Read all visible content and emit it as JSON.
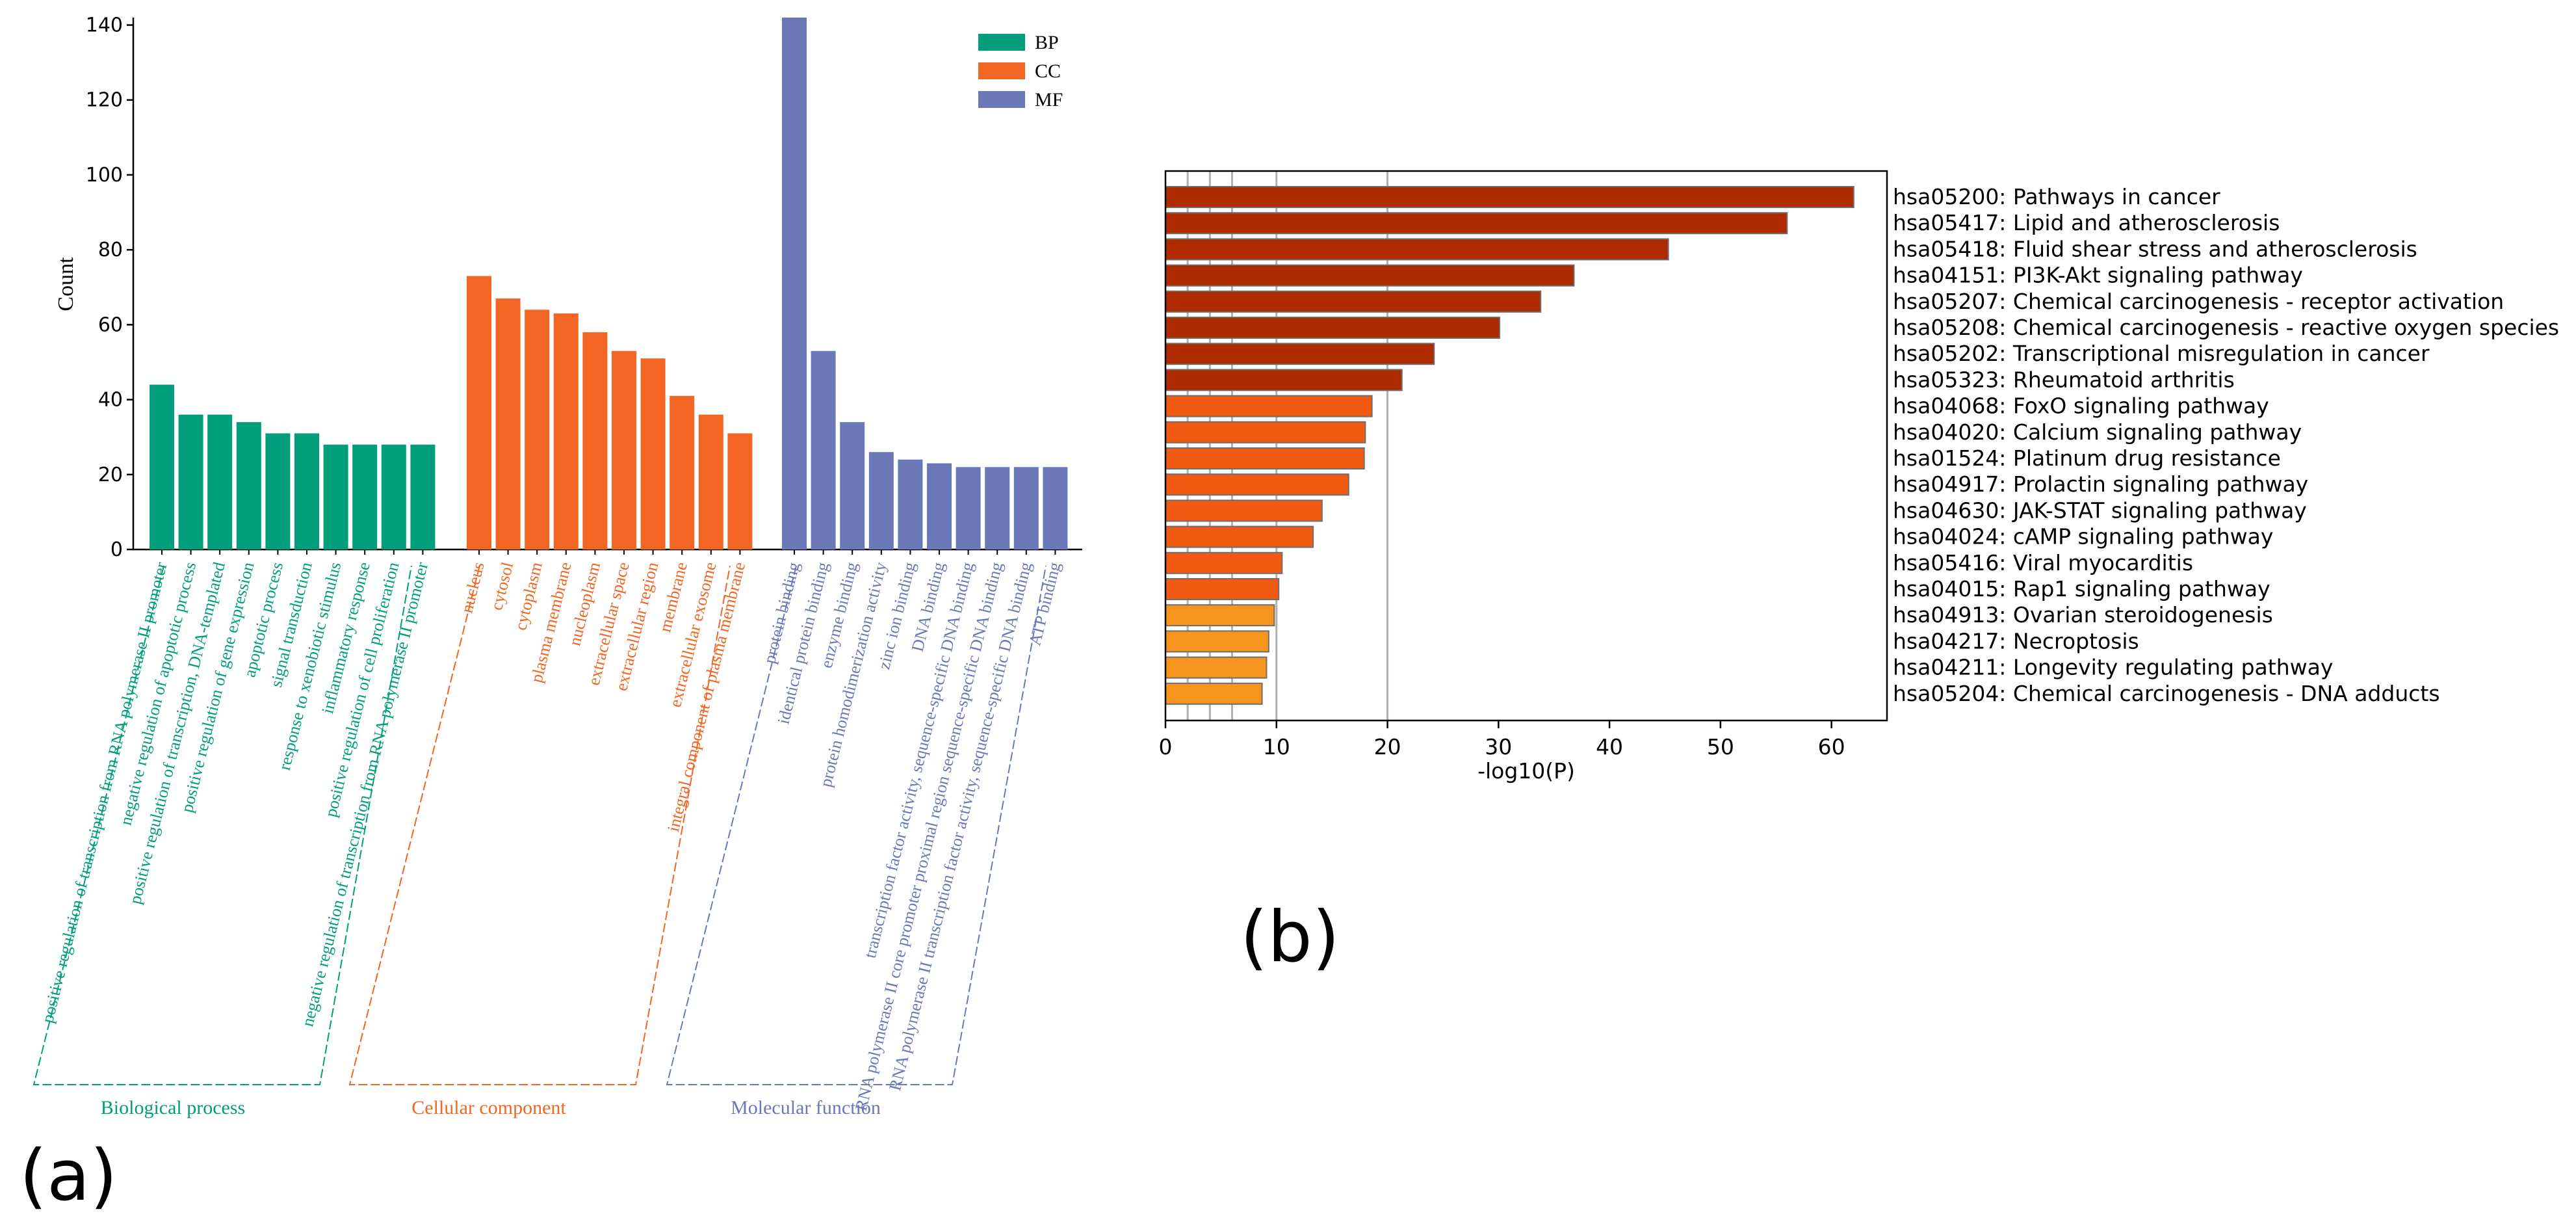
{
  "colors": {
    "BP": "#009e7a",
    "CC": "#f26522",
    "MF": "#6b78b8",
    "kegg_dark": "#b02a00",
    "kegg_mid": "#f05a12",
    "kegg_light": "#f7941d",
    "kegg_edge": "#6e6e6e",
    "grid": "#b0b0b0"
  },
  "panel_labels": {
    "a": "(a)",
    "b": "(b)"
  },
  "chart_data": [
    {
      "type": "bar",
      "panel": "(a)",
      "title": "",
      "xlabel": "",
      "ylabel": "Count",
      "ylim": [
        0,
        142
      ],
      "yticks": [
        0,
        20,
        40,
        60,
        80,
        100,
        120,
        140
      ],
      "legend": {
        "placement": "top-right",
        "entries": [
          "BP",
          "CC",
          "MF"
        ]
      },
      "groups": [
        {
          "name": "BP",
          "group_label": "Biological process",
          "categories": [
            "positive regulation of transcription from RNA polymerase II promoter",
            "negative regulation of apoptotic process",
            "positive regulation of transcription, DNA-templated",
            "positive regulation of gene expression",
            "apoptotic process",
            "signal transduction",
            "response to xenobiotic stimulus",
            "inflammatory response",
            "positive regulation of cell proliferation",
            "negative regulation of transcription from RNA polymerase II promoter"
          ],
          "values": [
            44,
            36,
            36,
            34,
            31,
            31,
            28,
            28,
            28,
            28
          ]
        },
        {
          "name": "CC",
          "group_label": "Cellular component",
          "categories": [
            "nucleus",
            "cytosol",
            "cytoplasm",
            "plasma membrane",
            "nucleoplasm",
            "extracellular space",
            "extracellular region",
            "membrane",
            "extracellular exosome",
            "integral component of plasma membrane"
          ],
          "values": [
            73,
            67,
            64,
            63,
            58,
            53,
            51,
            41,
            36,
            31
          ]
        },
        {
          "name": "MF",
          "group_label": "Molecular function",
          "categories": [
            "protein binding",
            "identical protein binding",
            "enzyme binding",
            "protein homodimerization activity",
            "zinc ion binding",
            "DNA binding",
            "transcription factor activity, sequence-specific DNA binding",
            "RNA polymerase II core promoter proximal region sequence-specific DNA binding",
            "RNA polymerase II transcription factor activity, sequence-specific DNA binding",
            "ATP binding"
          ],
          "values": [
            142,
            53,
            34,
            26,
            24,
            23,
            22,
            22,
            22,
            22
          ]
        }
      ]
    },
    {
      "type": "bar",
      "orientation": "horizontal",
      "panel": "(b)",
      "title": "",
      "xlabel": "-log10(P)",
      "ylabel": "",
      "xlim": [
        0,
        65
      ],
      "xticks": [
        0,
        10,
        20,
        30,
        40,
        50,
        60
      ],
      "gridlines_x": [
        2,
        4,
        6,
        10,
        20
      ],
      "categories": [
        "hsa05200: Pathways in cancer",
        "hsa05417: Lipid and atherosclerosis",
        "hsa05418: Fluid shear stress and atherosclerosis",
        "hsa04151: PI3K-Akt signaling pathway",
        "hsa05207: Chemical carcinogenesis - receptor activation",
        "hsa05208: Chemical carcinogenesis - reactive oxygen species",
        "hsa05202: Transcriptional misregulation in cancer",
        "hsa05323: Rheumatoid arthritis",
        "hsa04068: FoxO signaling pathway",
        "hsa04020: Calcium signaling pathway",
        "hsa01524: Platinum drug resistance",
        "hsa04917: Prolactin signaling pathway",
        "hsa04630: JAK-STAT signaling pathway",
        "hsa04024: cAMP signaling pathway",
        "hsa05416: Viral myocarditis",
        "hsa04015: Rap1 signaling pathway",
        "hsa04913: Ovarian steroidogenesis",
        "hsa04217: Necroptosis",
        "hsa04211: Longevity regulating pathway",
        "hsa05204: Chemical carcinogenesis - DNA adducts"
      ],
      "values": [
        62,
        56,
        45.3,
        36.8,
        33.8,
        30.1,
        24.2,
        21.3,
        18.6,
        18.0,
        17.9,
        16.5,
        14.1,
        13.3,
        10.5,
        10.2,
        9.8,
        9.3,
        9.1,
        8.7
      ],
      "color_tier": [
        "dark",
        "dark",
        "dark",
        "dark",
        "dark",
        "dark",
        "dark",
        "dark",
        "mid",
        "mid",
        "mid",
        "mid",
        "mid",
        "mid",
        "mid",
        "mid",
        "light",
        "light",
        "light",
        "light"
      ]
    }
  ]
}
